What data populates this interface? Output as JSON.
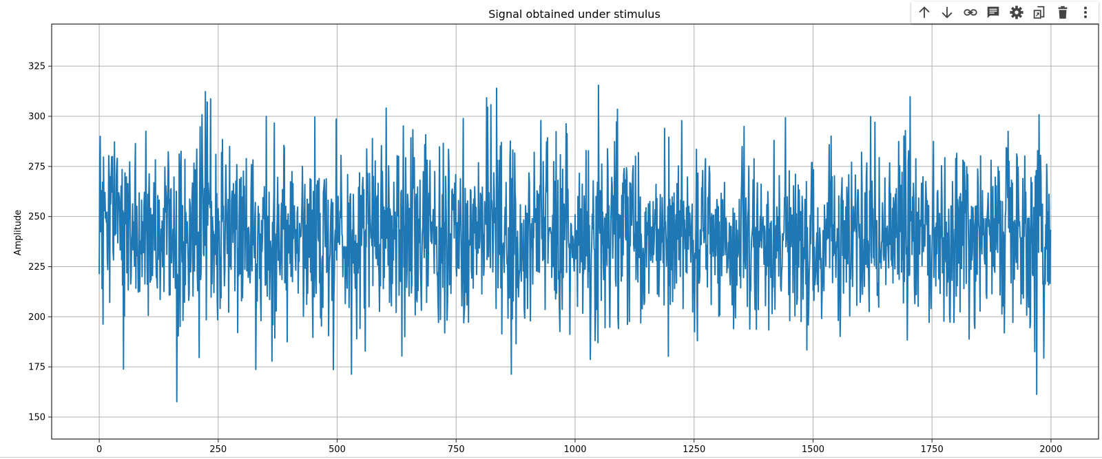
{
  "chart_data": {
    "type": "line",
    "title": "Signal obtained under stimulus",
    "xlabel": "",
    "ylabel": "Amplitude",
    "xlim": [
      -100,
      2100
    ],
    "ylim": [
      139,
      346
    ],
    "xticks": [
      0,
      250,
      500,
      750,
      1000,
      1250,
      1500,
      1750,
      2000
    ],
    "yticks": [
      150,
      175,
      200,
      225,
      250,
      275,
      300,
      325
    ],
    "grid": true,
    "series": [
      {
        "n_points": 2000,
        "x_start": 0,
        "x_end": 1999,
        "mean": 241,
        "typical_min": 185,
        "typical_max": 300,
        "min": 148,
        "max": 336,
        "color": "#1f77b4"
      }
    ]
  },
  "toolbar": {
    "icons": [
      "arrow-up-icon",
      "arrow-down-icon",
      "link-icon",
      "comment-icon",
      "gear-icon",
      "mirror-cell-icon",
      "trash-icon",
      "more-vert-icon"
    ]
  }
}
